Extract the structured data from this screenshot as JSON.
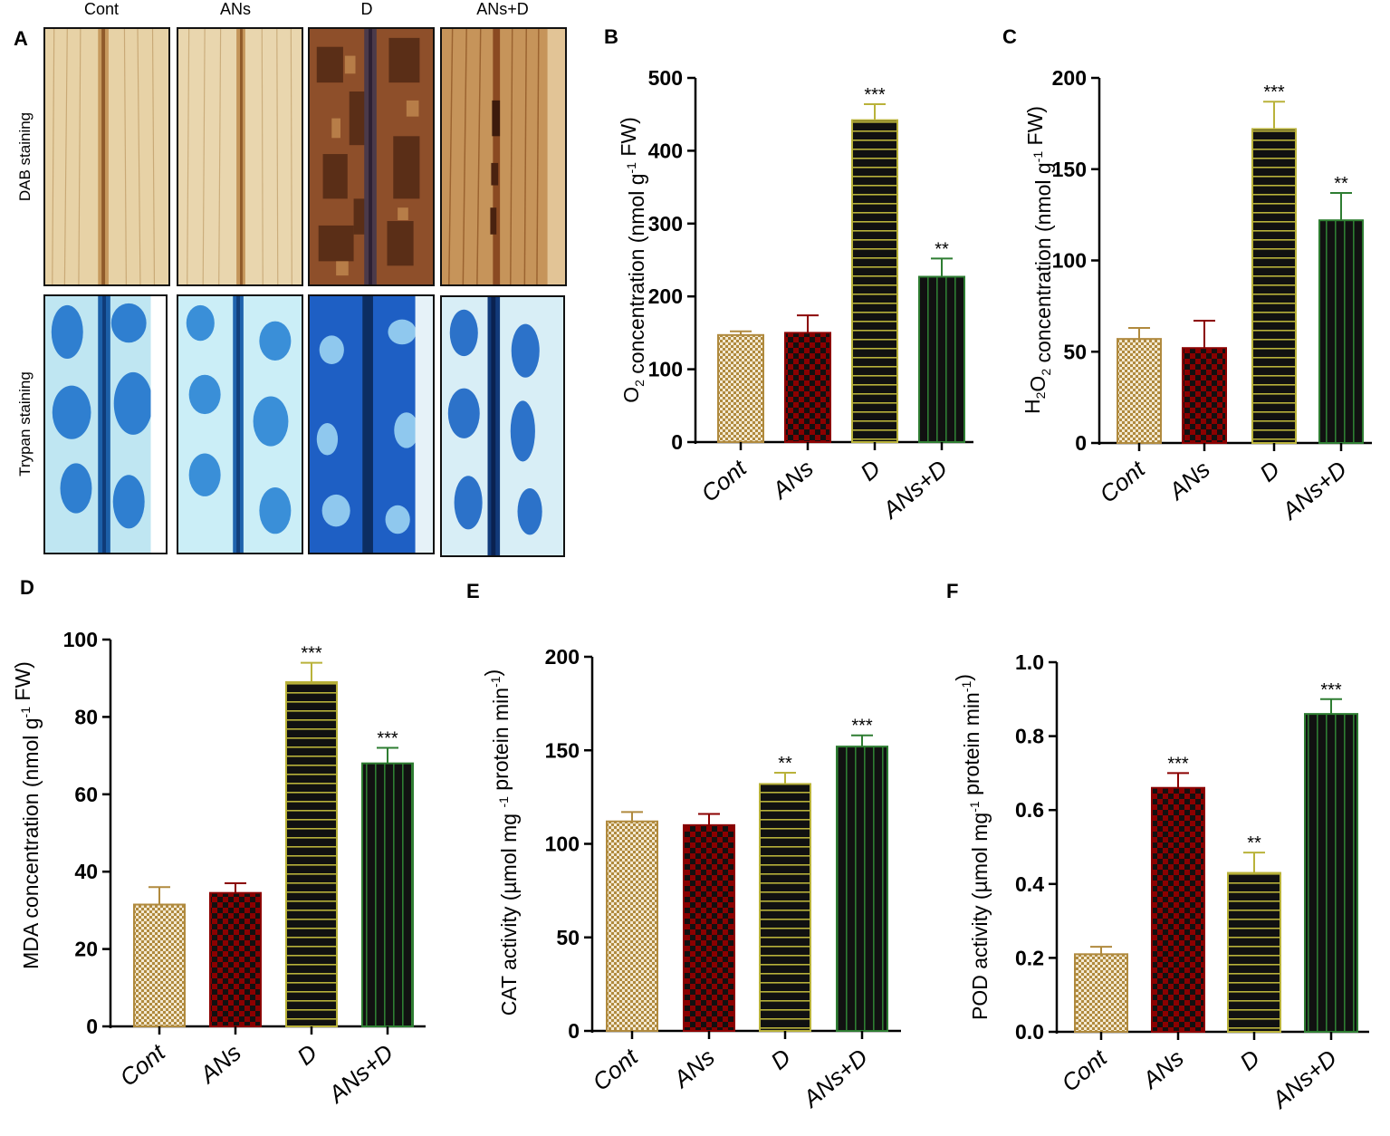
{
  "panel_a": {
    "label": "A",
    "columns": [
      "Cont",
      "ANs",
      "D",
      "ANs+D"
    ],
    "rows": [
      "DAB staining",
      "Trypan staining"
    ]
  },
  "colors": {
    "cont": "#b08a3e",
    "ans": "#8b0000",
    "d_stripe": "#b9b23a",
    "ansd_stripe": "#2e7d32",
    "dark": "#111111"
  },
  "chart_data": [
    {
      "panel": "B",
      "type": "bar",
      "categories": [
        "Cont",
        "ANs",
        "D",
        "ANs+D"
      ],
      "values": [
        147,
        150,
        442,
        227
      ],
      "errors": [
        5,
        24,
        22,
        25
      ],
      "significance": [
        "",
        "",
        "***",
        "**"
      ],
      "ylim": [
        0,
        500
      ],
      "yticks": [
        0,
        100,
        200,
        300,
        400,
        500
      ],
      "ylabel_parts": [
        "O",
        "2",
        " concentration (nmol g",
        "-1",
        " FW)"
      ],
      "title": "",
      "xlabel": ""
    },
    {
      "panel": "C",
      "type": "bar",
      "categories": [
        "Cont",
        "ANs",
        "D",
        "ANs+D"
      ],
      "values": [
        57,
        52,
        172,
        122
      ],
      "errors": [
        6,
        15,
        15,
        15
      ],
      "significance": [
        "",
        "",
        "***",
        "**"
      ],
      "ylim": [
        0,
        200
      ],
      "yticks": [
        0,
        50,
        100,
        150,
        200
      ],
      "ylabel_parts": [
        "H",
        "2",
        "O",
        "2",
        " concentration (nmol g",
        "-1",
        " FW)"
      ],
      "title": "",
      "xlabel": ""
    },
    {
      "panel": "D",
      "type": "bar",
      "categories": [
        "Cont",
        "ANs",
        "D",
        "ANs+D"
      ],
      "values": [
        31.5,
        34.5,
        89,
        68
      ],
      "errors": [
        4.5,
        2.5,
        5,
        4
      ],
      "significance": [
        "",
        "",
        "***",
        "***"
      ],
      "ylim": [
        0,
        100
      ],
      "yticks": [
        0,
        20,
        40,
        60,
        80,
        100
      ],
      "ylabel_parts": [
        "MDA concentration (nmol g",
        "-1",
        " FW)"
      ],
      "title": "",
      "xlabel": ""
    },
    {
      "panel": "E",
      "type": "bar",
      "categories": [
        "Cont",
        "ANs",
        "D",
        "ANs+D"
      ],
      "values": [
        112,
        110,
        132,
        152
      ],
      "errors": [
        5,
        6,
        6,
        6
      ],
      "significance": [
        "",
        "",
        "**",
        "***"
      ],
      "ylim": [
        0,
        200
      ],
      "yticks": [
        0,
        50,
        100,
        150,
        200
      ],
      "ylabel_parts": [
        "CAT activity (µmol mg ",
        "-1",
        " protein min",
        "-1",
        ")"
      ],
      "title": "",
      "xlabel": ""
    },
    {
      "panel": "F",
      "type": "bar",
      "categories": [
        "Cont",
        "ANs",
        "D",
        "ANs+D"
      ],
      "values": [
        0.21,
        0.66,
        0.43,
        0.86
      ],
      "errors": [
        0.02,
        0.04,
        0.055,
        0.04
      ],
      "significance": [
        "",
        "***",
        "**",
        "***"
      ],
      "ylim": [
        0,
        1.0
      ],
      "yticks": [
        0.0,
        0.2,
        0.4,
        0.6,
        0.8,
        1.0
      ],
      "tick_format": "1dp",
      "ylabel_parts": [
        "POD activity (µmol mg",
        "-1",
        " protein min",
        "-1",
        ")"
      ],
      "title": "",
      "xlabel": ""
    }
  ]
}
